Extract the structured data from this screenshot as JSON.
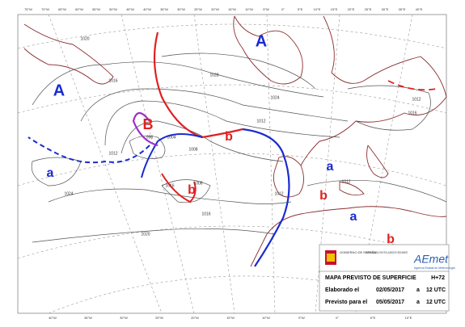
{
  "header": {
    "title": "MAPA PREVISTO DE SUPERFICIE",
    "lead_time": "H+72",
    "issued_label": "Elaborado el",
    "issued_date": "02/05/2017",
    "issued_at": "a",
    "issued_time": "12 UTC",
    "valid_label": "Previsto para el",
    "valid_date": "05/05/2017",
    "valid_at": "a",
    "valid_time": "12 UTC"
  },
  "logos": {
    "government": "GOBIERNO DE ESPAÑA",
    "ministry": "MINISTERIO DE AGRICULTURA Y PESCA, ALIMENTACIÓN Y MEDIO AMBIENTE",
    "agency": "AEmet",
    "agency_name": "Agencia Estatal de Meteorología"
  },
  "pressure_centers": [
    "A",
    "A",
    "B",
    "a",
    "b",
    "b",
    "a",
    "b",
    "a",
    "b"
  ],
  "isobar_labels": [
    "1020",
    "1024",
    "1028",
    "1016",
    "1012",
    "1008",
    "1004",
    "996",
    "1012",
    "1016",
    "1008",
    "1012",
    "1016",
    "1024",
    "1012",
    "1012",
    "1020",
    "1016"
  ],
  "longitudes_top": [
    "75°W",
    "70°W",
    "65°W",
    "60°W",
    "55°W",
    "50°W",
    "45°W",
    "40°W",
    "35°W",
    "30°W",
    "25°W",
    "20°W",
    "15°W",
    "10°W",
    "5°W",
    "0°",
    "5°E",
    "10°E",
    "15°E",
    "20°E",
    "25°E",
    "30°E",
    "35°E",
    "40°E"
  ],
  "longitudes_bottom": [
    "40°W",
    "35°W",
    "30°W",
    "25°W",
    "20°W",
    "15°W",
    "10°W",
    "5°W",
    "0°",
    "5°E",
    "10°E"
  ]
}
